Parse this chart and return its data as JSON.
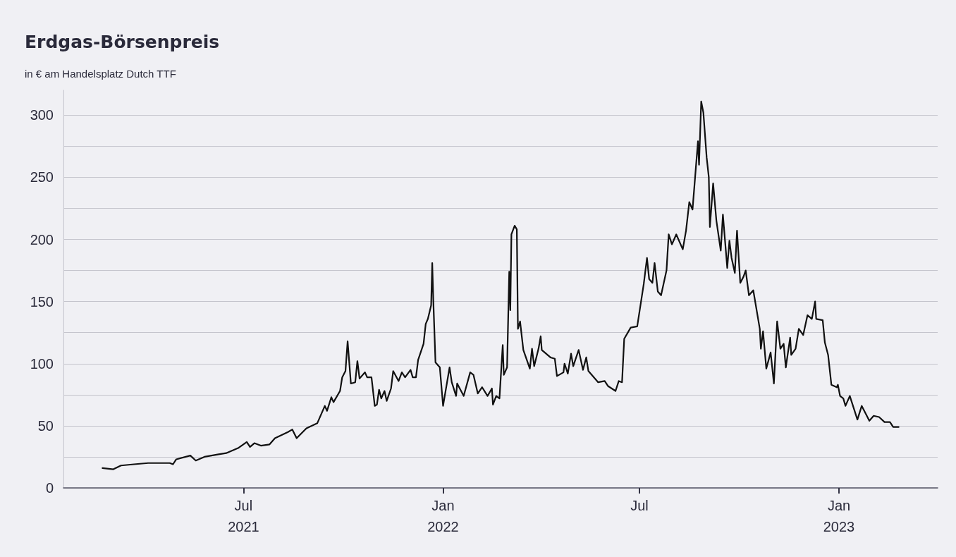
{
  "chart_data": {
    "type": "line",
    "title": "Erdgas-Börsenpreis",
    "subtitle": "in € am Handelsplatz Dutch TTF",
    "x": [
      "2021-02-21",
      "2021-03-03",
      "2021-03-10",
      "2021-03-22",
      "2021-04-04",
      "2021-04-24",
      "2021-04-27",
      "2021-04-30",
      "2021-05-13",
      "2021-05-18",
      "2021-05-26",
      "2021-06-08",
      "2021-06-15",
      "2021-06-26",
      "2021-07-04",
      "2021-07-07",
      "2021-07-11",
      "2021-07-17",
      "2021-07-25",
      "2021-07-30",
      "2021-08-11",
      "2021-08-15",
      "2021-08-19",
      "2021-08-28",
      "2021-09-07",
      "2021-09-14",
      "2021-09-16",
      "2021-09-20",
      "2021-09-22",
      "2021-09-28",
      "2021-09-30",
      "2021-10-03",
      "2021-10-05",
      "2021-10-08",
      "2021-10-12",
      "2021-10-14",
      "2021-10-16",
      "2021-10-21",
      "2021-10-23",
      "2021-10-27",
      "2021-10-30",
      "2021-11-01",
      "2021-11-03",
      "2021-11-05",
      "2021-11-08",
      "2021-11-10",
      "2021-11-14",
      "2021-11-16",
      "2021-11-21",
      "2021-11-24",
      "2021-11-27",
      "2021-12-02",
      "2021-12-04",
      "2021-12-07",
      "2021-12-09",
      "2021-12-14",
      "2021-12-16",
      "2021-12-18",
      "2021-12-21",
      "2021-12-22",
      "2021-12-23",
      "2021-12-25",
      "2021-12-29",
      "2022-01-01",
      "2022-01-07",
      "2022-01-09",
      "2022-01-13",
      "2022-01-14",
      "2022-01-20",
      "2022-01-26",
      "2022-01-29",
      "2022-02-02",
      "2022-02-06",
      "2022-02-11",
      "2022-02-15",
      "2022-02-16",
      "2022-02-19",
      "2022-02-22",
      "2022-02-25",
      "2022-02-26",
      "2022-03-01",
      "2022-03-03",
      "2022-03-04",
      "2022-03-05",
      "2022-03-08",
      "2022-03-10",
      "2022-03-11",
      "2022-03-13",
      "2022-03-16",
      "2022-03-22",
      "2022-03-24",
      "2022-03-26",
      "2022-03-30",
      "2022-04-01",
      "2022-04-02",
      "2022-04-10",
      "2022-04-14",
      "2022-04-16",
      "2022-04-22",
      "2022-04-23",
      "2022-04-26",
      "2022-04-29",
      "2022-05-01",
      "2022-05-06",
      "2022-05-10",
      "2022-05-13",
      "2022-05-15",
      "2022-05-24",
      "2022-05-30",
      "2022-06-02",
      "2022-06-09",
      "2022-06-12",
      "2022-06-15",
      "2022-06-17",
      "2022-06-23",
      "2022-06-29",
      "2022-07-05",
      "2022-07-08",
      "2022-07-10",
      "2022-07-13",
      "2022-07-15",
      "2022-07-18",
      "2022-07-21",
      "2022-07-26",
      "2022-07-28",
      "2022-07-31",
      "2022-08-04",
      "2022-08-10",
      "2022-08-13",
      "2022-08-16",
      "2022-08-19",
      "2022-08-24",
      "2022-08-25",
      "2022-08-27",
      "2022-08-29",
      "2022-09-01",
      "2022-09-03",
      "2022-09-04",
      "2022-09-07",
      "2022-09-10",
      "2022-09-14",
      "2022-09-16",
      "2022-09-20",
      "2022-09-22",
      "2022-09-24",
      "2022-09-27",
      "2022-09-29",
      "2022-10-02",
      "2022-10-05",
      "2022-10-07",
      "2022-10-10",
      "2022-10-14",
      "2022-10-20",
      "2022-10-21",
      "2022-10-23",
      "2022-10-26",
      "2022-10-30",
      "2022-11-02",
      "2022-11-05",
      "2022-11-08",
      "2022-11-11",
      "2022-11-13",
      "2022-11-17",
      "2022-11-18",
      "2022-11-22",
      "2022-11-25",
      "2022-11-29",
      "2022-12-03",
      "2022-12-07",
      "2022-12-10",
      "2022-12-11",
      "2022-12-17",
      "2022-12-19",
      "2022-12-22",
      "2022-12-25",
      "2022-12-30",
      "2022-12-31",
      "2023-01-02",
      "2023-01-05",
      "2023-01-07",
      "2023-01-11",
      "2023-01-18",
      "2023-01-22",
      "2023-01-29",
      "2023-02-02",
      "2023-02-07",
      "2023-02-12",
      "2023-02-17",
      "2023-02-20",
      "2023-02-25"
    ],
    "series": [
      {
        "color": "#111111",
        "values": [
          16,
          15,
          18,
          19,
          20,
          20,
          19,
          23,
          26,
          22,
          25,
          27,
          28,
          32,
          37,
          33,
          36,
          34,
          35,
          40,
          45,
          47,
          40,
          48,
          52,
          66,
          62,
          73,
          69,
          78,
          89,
          94,
          118,
          84,
          85,
          102,
          88,
          93,
          89,
          89,
          66,
          67,
          79,
          72,
          78,
          70,
          80,
          94,
          86,
          93,
          89,
          95,
          89,
          89,
          103,
          116,
          132,
          136,
          147,
          181,
          151,
          101,
          97,
          66,
          97,
          85,
          74,
          84,
          74,
          93,
          91,
          76,
          81,
          74,
          80,
          67,
          74,
          72,
          115,
          91,
          97,
          174,
          143,
          204,
          211,
          208,
          128,
          134,
          111,
          96,
          112,
          98,
          112,
          122,
          111,
          105,
          104,
          90,
          93,
          100,
          92,
          108,
          98,
          111,
          95,
          105,
          94,
          85,
          86,
          82,
          78,
          86,
          85,
          120,
          129,
          130,
          164,
          185,
          168,
          165,
          181,
          158,
          155,
          175,
          204,
          196,
          204,
          192,
          207,
          230,
          224,
          279,
          260,
          311,
          302,
          266,
          250,
          210,
          245,
          215,
          191,
          220,
          177,
          199,
          185,
          173,
          207,
          165,
          170,
          175,
          155,
          159,
          128,
          112,
          126,
          96,
          109,
          84,
          134,
          112,
          116,
          97,
          121,
          107,
          112,
          128,
          123,
          139,
          136,
          150,
          136,
          135,
          117,
          107,
          83,
          81,
          83,
          74,
          72,
          66,
          74,
          55,
          66,
          54,
          58,
          57,
          53,
          53,
          49,
          49
        ]
      }
    ],
    "xlim": [
      "2021-01-16",
      "2023-04-02"
    ],
    "xticks": [
      {
        "value": "2021-07-01",
        "label": "Jul\n2021"
      },
      {
        "value": "2022-01-01",
        "label": "Jan\n2022"
      },
      {
        "value": "2022-07-01",
        "label": "Jul"
      },
      {
        "value": "2023-01-01",
        "label": "Jan\n2023"
      }
    ],
    "ylim": [
      0,
      320
    ],
    "yticks": [
      0,
      {
        "value": 25,
        "label": null
      },
      50,
      {
        "value": 75,
        "label": null
      },
      100,
      {
        "value": 125,
        "label": null
      },
      150,
      {
        "value": 175,
        "label": null
      },
      200,
      {
        "value": 225,
        "label": null
      },
      250,
      {
        "value": 275,
        "label": null
      },
      300
    ],
    "grid": "y",
    "marker": "none",
    "line_style": "solid"
  }
}
